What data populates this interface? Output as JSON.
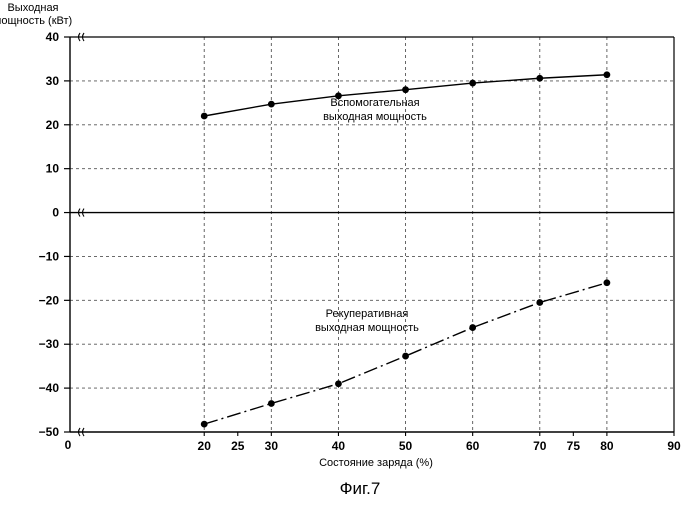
{
  "chart_data": {
    "type": "line",
    "title": "",
    "ylabel": [
      "Выходная",
      "мощность (кВт)"
    ],
    "xlabel": "Состояние заряда (%)",
    "caption": "Фиг.7",
    "xlim": [
      0,
      90
    ],
    "ylim": [
      -50,
      40
    ],
    "x_ticks": [
      {
        "value": 20,
        "label": "20"
      },
      {
        "value": 25,
        "label": "25"
      },
      {
        "value": 30,
        "label": "30"
      },
      {
        "value": 40,
        "label": "40"
      },
      {
        "value": 50,
        "label": "50"
      },
      {
        "value": 60,
        "label": "60"
      },
      {
        "value": 70,
        "label": "70"
      },
      {
        "value": 75,
        "label": "75"
      },
      {
        "value": 80,
        "label": "80"
      },
      {
        "value": 90,
        "label": "90"
      }
    ],
    "x_origin_label": "0",
    "y_ticks": [
      {
        "value": 40,
        "label": "40"
      },
      {
        "value": 30,
        "label": "30"
      },
      {
        "value": 20,
        "label": "20"
      },
      {
        "value": 10,
        "label": "10"
      },
      {
        "value": 0,
        "label": "0"
      },
      {
        "value": -10,
        "label": "−10"
      },
      {
        "value": -20,
        "label": "−20"
      },
      {
        "value": -30,
        "label": "−30"
      },
      {
        "value": -40,
        "label": "−40"
      },
      {
        "value": -50,
        "label": "−50"
      }
    ],
    "axis_breaks_y": [
      40,
      0,
      -50
    ],
    "grid": true,
    "series": [
      {
        "name": "Вспомогательная выходная мощность",
        "label_lines": [
          "Вспомогательная",
          "выходная мощность"
        ],
        "line_style": "solid",
        "x": [
          20,
          30,
          40,
          50,
          60,
          70,
          80
        ],
        "y": [
          22,
          24.7,
          26.6,
          28,
          29.5,
          30.6,
          31.4
        ]
      },
      {
        "name": "Рекуперативная выходная мощность",
        "label_lines": [
          "Рекуперативная",
          "выходная мощность"
        ],
        "line_style": "dash-dot",
        "x": [
          20,
          30,
          40,
          50,
          60,
          70,
          80
        ],
        "y": [
          -48.2,
          -43.5,
          -39,
          -32.7,
          -26.2,
          -20.5,
          -16
        ]
      }
    ]
  }
}
